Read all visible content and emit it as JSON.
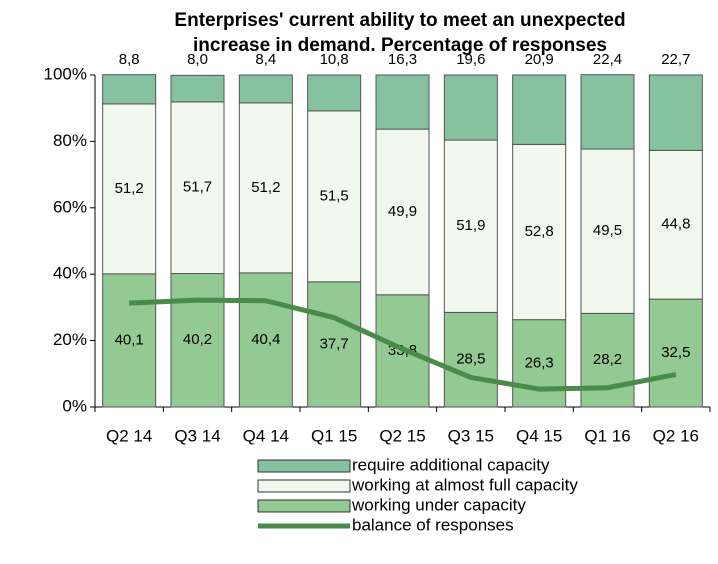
{
  "chart_data": {
    "type": "stacked_bar_line",
    "title": [
      "Enterprises' current ability to meet an unexpected",
      "increase in demand. Percentage of responses"
    ],
    "categories": [
      "Q2 14",
      "Q3 14",
      "Q4 14",
      "Q1 15",
      "Q2 15",
      "Q3 15",
      "Q4 15",
      "Q1 16",
      "Q2 16"
    ],
    "series": [
      {
        "name": "working under capacity",
        "color": "#93c993",
        "label_position": "inside",
        "values": [
          40.1,
          40.2,
          40.4,
          37.7,
          33.8,
          28.5,
          26.3,
          28.2,
          32.5
        ],
        "value_labels": [
          "40,1",
          "40,2",
          "40,4",
          "37,7",
          "33,8",
          "28,5",
          "26,3",
          "28,2",
          "32,5"
        ]
      },
      {
        "name": "working at almost full capacity",
        "color": "#f2f8ee",
        "label_position": "inside",
        "values": [
          51.2,
          51.7,
          51.2,
          51.5,
          49.9,
          51.9,
          52.8,
          49.5,
          44.8
        ],
        "value_labels": [
          "51,2",
          "51,7",
          "51,2",
          "51,5",
          "49,9",
          "51,9",
          "52,8",
          "49,5",
          "44,8"
        ]
      },
      {
        "name": "require additional capacity",
        "color": "#86c2a0",
        "label_position": "above",
        "values": [
          8.8,
          8.0,
          8.4,
          10.8,
          16.3,
          19.6,
          20.9,
          22.4,
          22.7
        ],
        "value_labels": [
          "8,8",
          "8,0",
          "8,4",
          "10,8",
          "16,3",
          "19,6",
          "20,9",
          "22,4",
          "22,7"
        ]
      },
      {
        "name": "balance of responses",
        "color": "#4a8a4a",
        "type": "line",
        "values": [
          31.3,
          32.2,
          32.0,
          26.9,
          17.5,
          8.9,
          5.4,
          5.8,
          9.8
        ]
      }
    ],
    "ylim": [
      0,
      100
    ],
    "yticks": [
      {
        "value": 0,
        "label": "0%"
      },
      {
        "value": 20,
        "label": "20%"
      },
      {
        "value": 40,
        "label": "40%"
      },
      {
        "value": 60,
        "label": "60%"
      },
      {
        "value": 80,
        "label": "80%"
      },
      {
        "value": 100,
        "label": "100%"
      }
    ]
  }
}
